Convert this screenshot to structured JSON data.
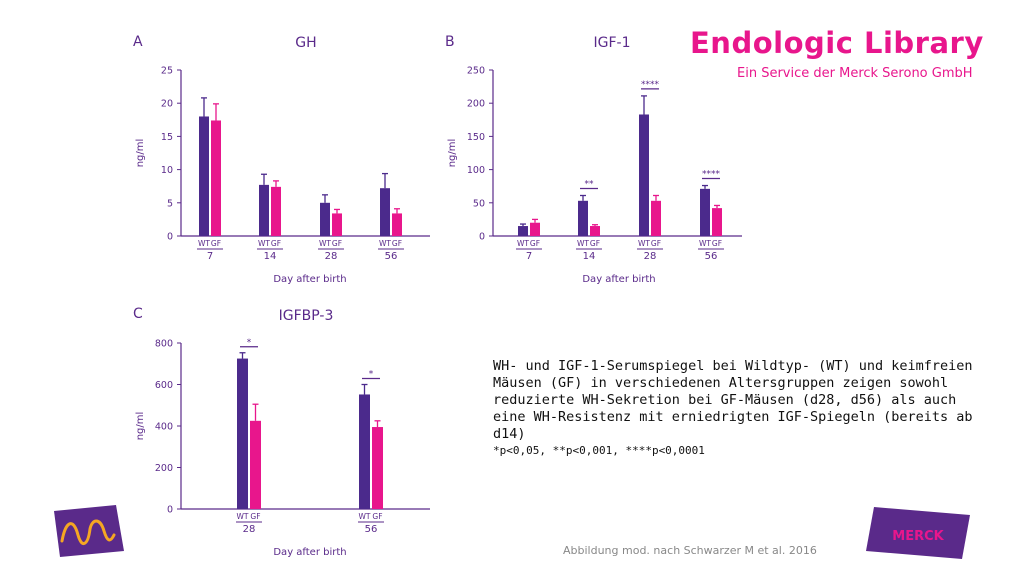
{
  "brand": {
    "title": "Endologic Library",
    "subtitle": "Ein Service der Merck Serono GmbH"
  },
  "caption": {
    "text": "WH- und IGF-1-Serumspiegel bei Wildtyp- (WT) und keimfreien Mäusen (GF) in verschiedenen Altersgruppen zeigen sowohl reduzierte WH-Sekretion bei GF-Mäusen (d28, d56) als auch eine WH-Resistenz mit erniedrigten IGF-Spiegeln (bereits ab d14)",
    "footnote": "*p<0,05, **p<0,001, ****p<0,0001"
  },
  "citation": "Abbildung mod. nach Schwarzer M et al. 2016",
  "logos": {
    "left": "merck-m-logo-icon",
    "right": "merck-wordmark-logo-icon",
    "right_text": "MERCK"
  },
  "colors": {
    "wt": "#4b2a8c",
    "gf": "#e8168c",
    "axis": "#5a2a8a",
    "text": "#5a2a8a"
  },
  "chart_data": [
    {
      "panel": "A",
      "type": "bar",
      "title": "GH",
      "categories": [
        "7",
        "14",
        "28",
        "56"
      ],
      "bar_labels": [
        "WT",
        "GF"
      ],
      "xlabel": "Day after birth",
      "ylabel": "ng/ml",
      "ylim": [
        0,
        25
      ],
      "yticks": [
        0,
        5,
        10,
        15,
        20,
        25
      ],
      "series": [
        {
          "name": "WT",
          "values": [
            18,
            7.7,
            5,
            7.2
          ],
          "errors": [
            2.8,
            1.6,
            1.2,
            2.2
          ]
        },
        {
          "name": "GF",
          "values": [
            17.4,
            7.4,
            3.4,
            3.4
          ],
          "errors": [
            2.5,
            0.9,
            0.6,
            0.7
          ]
        }
      ],
      "significance": []
    },
    {
      "panel": "B",
      "type": "bar",
      "title": "IGF-1",
      "categories": [
        "7",
        "14",
        "28",
        "56"
      ],
      "bar_labels": [
        "WT",
        "GF"
      ],
      "xlabel": "Day after birth",
      "ylabel": "ng/ml",
      "ylim": [
        0,
        250
      ],
      "yticks": [
        0,
        50,
        100,
        150,
        200,
        250
      ],
      "series": [
        {
          "name": "WT",
          "values": [
            15,
            53,
            183,
            71
          ],
          "errors": [
            3,
            8,
            28,
            5
          ]
        },
        {
          "name": "GF",
          "values": [
            20,
            15,
            53,
            42
          ],
          "errors": [
            5,
            2,
            8,
            4
          ]
        }
      ],
      "significance": [
        {
          "category": "14",
          "label": "**"
        },
        {
          "category": "28",
          "label": "****"
        },
        {
          "category": "56",
          "label": "****"
        }
      ]
    },
    {
      "panel": "C",
      "type": "bar",
      "title": "IGFBP-3",
      "categories": [
        "28",
        "56"
      ],
      "bar_labels": [
        "WT",
        "GF"
      ],
      "xlabel": "Day after birth",
      "ylabel": "ng/ml",
      "ylim": [
        0,
        800
      ],
      "yticks": [
        0,
        200,
        400,
        600,
        800
      ],
      "series": [
        {
          "name": "WT",
          "values": [
            725,
            552
          ],
          "errors": [
            28,
            48
          ]
        },
        {
          "name": "GF",
          "values": [
            425,
            395
          ],
          "errors": [
            80,
            30
          ]
        }
      ],
      "significance": [
        {
          "category": "28",
          "label": "*"
        },
        {
          "category": "56",
          "label": "*"
        }
      ]
    }
  ]
}
